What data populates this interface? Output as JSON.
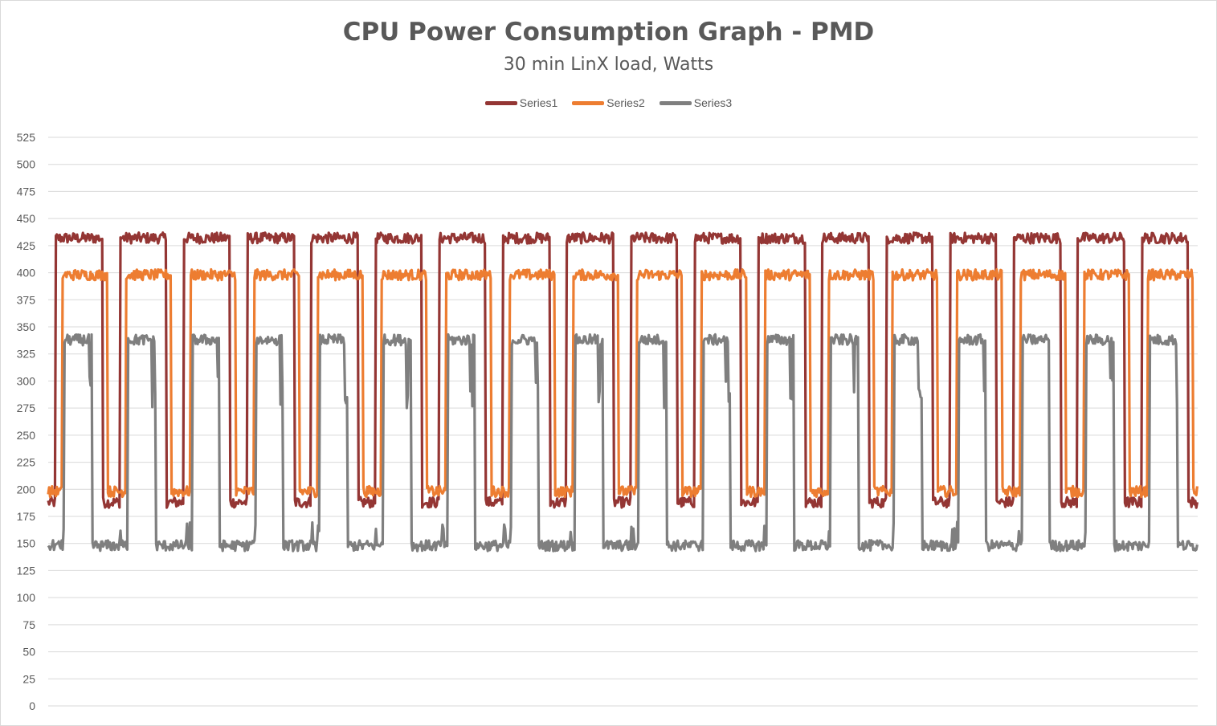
{
  "chart_data": {
    "type": "line",
    "title": "CPU Power Consumption Graph - PMD",
    "subtitle": "30 min LinX load, Watts",
    "xlabel": "",
    "ylabel": "",
    "ylim": [
      0,
      525
    ],
    "yticks": [
      0,
      25,
      50,
      75,
      100,
      125,
      150,
      175,
      200,
      225,
      250,
      275,
      300,
      325,
      350,
      375,
      400,
      425,
      450,
      475,
      500,
      525
    ],
    "grid": true,
    "legend_position": "top-center",
    "cycles": 18,
    "series": [
      {
        "name": "Series1",
        "color": "#943634",
        "high": 432,
        "low": 188
      },
      {
        "name": "Series2",
        "color": "#ed7d31",
        "high": 398,
        "low": 198
      },
      {
        "name": "Series3",
        "color": "#7f7f7f",
        "high": 338,
        "low": 148
      }
    ]
  }
}
